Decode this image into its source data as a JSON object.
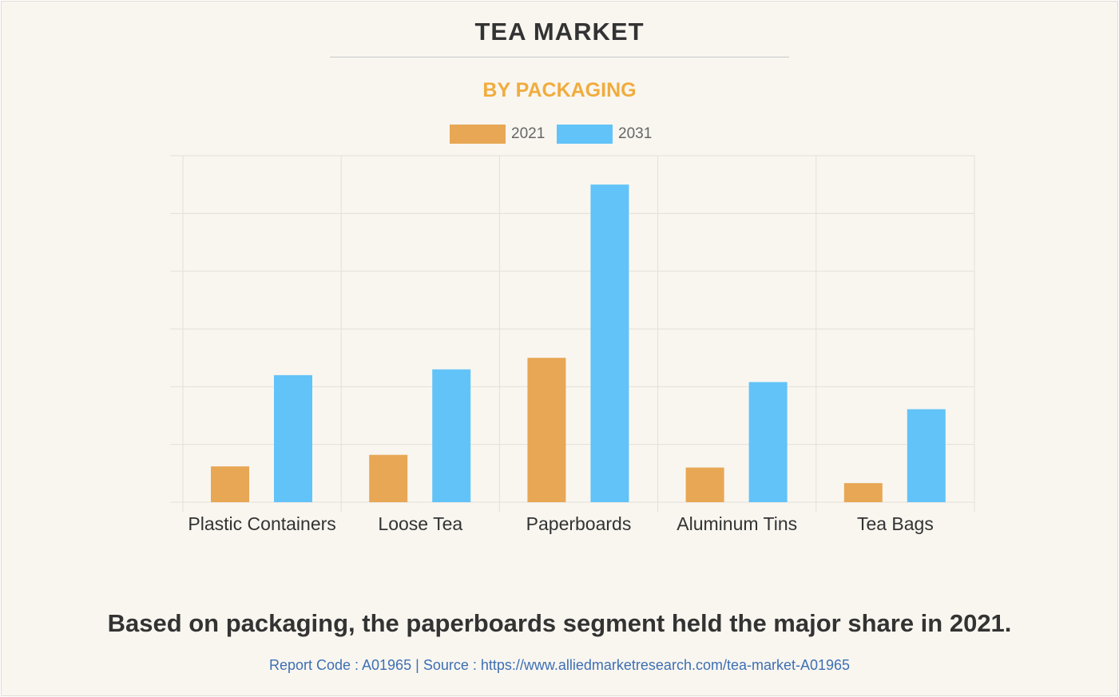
{
  "title": "TEA MARKET",
  "subtitle": "BY PACKAGING",
  "caption": "Based on packaging, the paperboards segment held the major share in 2021.",
  "footer": {
    "report_code": "Report Code : A01965",
    "separator": "|",
    "source": "Source : https://www.alliedmarketresearch.com/tea-market-A01965"
  },
  "colors": {
    "series_2021": "#e8a755",
    "series_2031": "#62c3f8",
    "grid": "#e3e0da",
    "accent": "#f0ac3e"
  },
  "chart_data": {
    "type": "bar",
    "categories": [
      "Plastic Containers",
      "Loose Tea",
      "Paperboards",
      "Aluminum Tins",
      "Tea Bags"
    ],
    "series": [
      {
        "name": "2021",
        "values": [
          0.62,
          0.82,
          2.5,
          0.6,
          0.33
        ]
      },
      {
        "name": "2031",
        "values": [
          2.2,
          2.3,
          5.5,
          2.08,
          1.61
        ]
      }
    ],
    "ylim": [
      0,
      6
    ],
    "grid": true,
    "legend": "top-center"
  }
}
